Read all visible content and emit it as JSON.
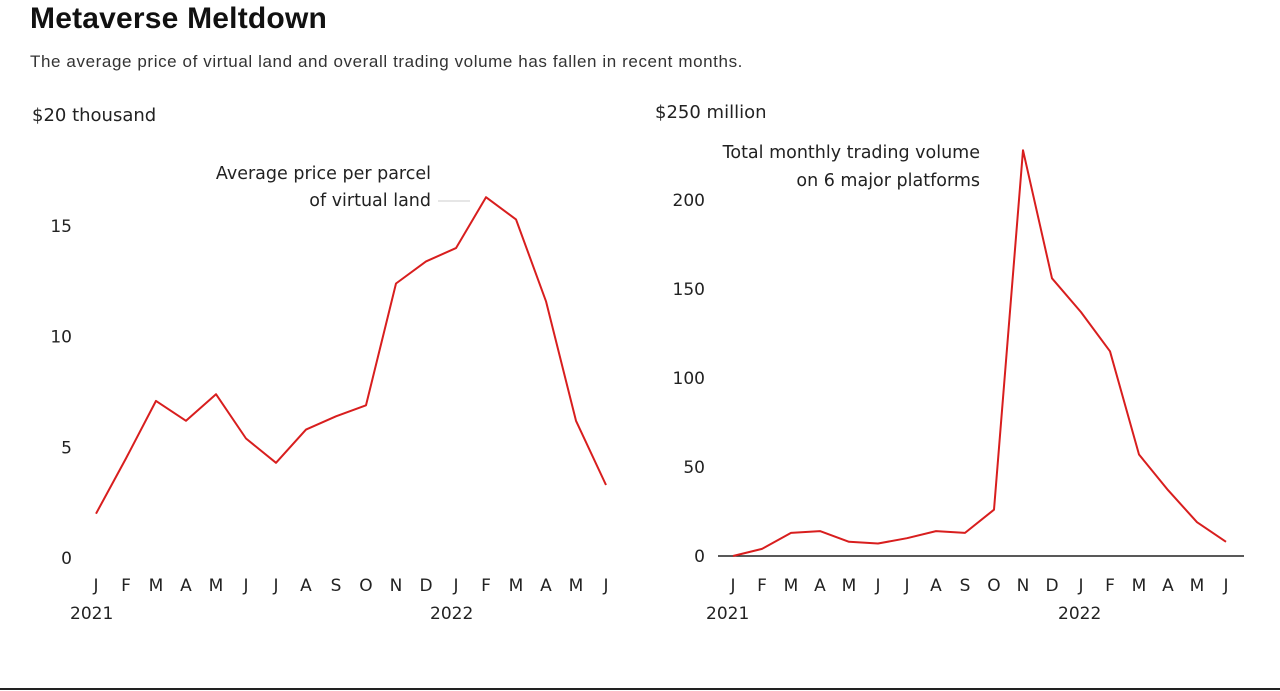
{
  "title": "Metaverse Meltdown",
  "subtitle": "The average price of virtual land and overall trading volume has fallen in recent months.",
  "colors": {
    "line": "#d81e1e",
    "baseline": "#222222",
    "text": "#222222"
  },
  "chart_data": [
    {
      "type": "line",
      "top_label": "$20 thousand",
      "annotation": [
        "Average price per parcel",
        "of virtual land"
      ],
      "ylim": [
        0,
        20
      ],
      "yticks": [
        "15",
        "10",
        "5",
        "0"
      ],
      "ytick_values": [
        15,
        10,
        5,
        0
      ],
      "categories": [
        "J",
        "F",
        "M",
        "A",
        "M",
        "J",
        "J",
        "A",
        "S",
        "O",
        "N",
        "D",
        "J",
        "F",
        "M",
        "A",
        "M",
        "J"
      ],
      "year_labels": [
        "2021",
        "2022"
      ],
      "series": [
        {
          "values": [
            2.0,
            4.5,
            7.1,
            6.2,
            7.4,
            5.4,
            4.3,
            5.8,
            6.4,
            6.9,
            12.4,
            13.4,
            14.0,
            16.3,
            15.3,
            11.6,
            6.2,
            3.3
          ]
        }
      ],
      "grid": false
    },
    {
      "type": "line",
      "top_label": "$250 million",
      "annotation": [
        "Total monthly trading volume",
        "on 6 major platforms"
      ],
      "ylim": [
        0,
        250
      ],
      "yticks": [
        "200",
        "150",
        "100",
        "50",
        "0"
      ],
      "ytick_values": [
        200,
        150,
        100,
        50,
        0
      ],
      "categories": [
        "J",
        "F",
        "M",
        "A",
        "M",
        "J",
        "J",
        "A",
        "S",
        "O",
        "N",
        "D",
        "J",
        "F",
        "M",
        "A",
        "M",
        "J"
      ],
      "year_labels": [
        "2021",
        "2022"
      ],
      "series": [
        {
          "values": [
            0,
            4,
            13,
            14,
            8,
            7,
            10,
            14,
            13,
            26,
            228,
            156,
            137,
            115,
            57,
            37,
            19,
            8
          ]
        }
      ],
      "grid": false
    }
  ]
}
